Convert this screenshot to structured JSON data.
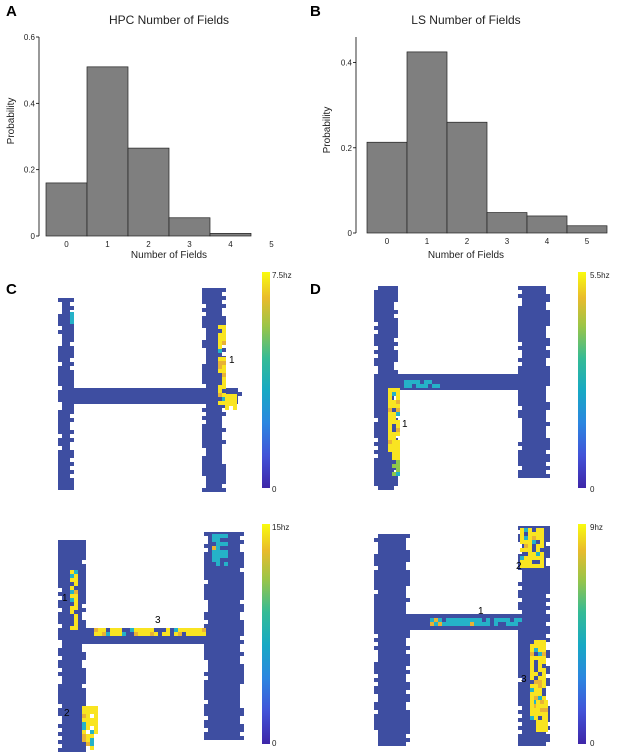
{
  "panels": {
    "a": {
      "letter": "A"
    },
    "b": {
      "letter": "B"
    },
    "c": {
      "letter": "C"
    },
    "d": {
      "letter": "D"
    }
  },
  "chart_data": [
    {
      "id": "hpc",
      "type": "bar",
      "title": "HPC Number of Fields",
      "xlabel": "Number of Fields",
      "ylabel": "Probability",
      "categories": [
        "0",
        "1",
        "2",
        "3",
        "4",
        "5"
      ],
      "values": [
        0.16,
        0.51,
        0.265,
        0.055,
        0.008,
        0.0
      ],
      "ylim": [
        0,
        0.6
      ],
      "yticks": [
        {
          "v": 0,
          "label": "0"
        },
        {
          "v": 0.2,
          "label": "0.2"
        },
        {
          "v": 0.4,
          "label": "0.4"
        },
        {
          "v": 0.6,
          "label": "0.6"
        }
      ],
      "bar_color": "#7f7f7f",
      "grid": false
    },
    {
      "id": "ls",
      "type": "bar",
      "title": "LS Number of Fields",
      "xlabel": "Number of Fields",
      "ylabel": "Probability",
      "categories": [
        "0",
        "1",
        "2",
        "3",
        "4",
        "5"
      ],
      "values": [
        0.213,
        0.425,
        0.26,
        0.048,
        0.04,
        0.017
      ],
      "ylim": [
        0,
        0.46
      ],
      "yticks": [
        {
          "v": 0,
          "label": "0"
        },
        {
          "v": 0.2,
          "label": "0.2"
        },
        {
          "v": 0.4,
          "label": "0.4"
        }
      ],
      "bar_color": "#7f7f7f",
      "grid": false
    }
  ],
  "heatmaps": [
    {
      "id": "c-top",
      "max_label": "7.5hz",
      "min_label": "0",
      "fields": [
        {
          "label": "1"
        }
      ]
    },
    {
      "id": "d-top",
      "max_label": "5.5hz",
      "min_label": "0",
      "fields": [
        {
          "label": "1"
        }
      ]
    },
    {
      "id": "c-bottom",
      "max_label": "15hz",
      "min_label": "0",
      "fields": [
        {
          "label": "1"
        },
        {
          "label": "3"
        },
        {
          "label": "2"
        }
      ]
    },
    {
      "id": "d-bottom",
      "max_label": "9hz",
      "min_label": "0",
      "fields": [
        {
          "label": "1"
        },
        {
          "label": "2"
        },
        {
          "label": "3"
        }
      ]
    }
  ],
  "colors": {
    "background_map": "#3e4ea1",
    "yellow": "#f9e421",
    "cyan": "#25b2c8",
    "green": "#8fc94a",
    "orange": "#e8b236"
  }
}
